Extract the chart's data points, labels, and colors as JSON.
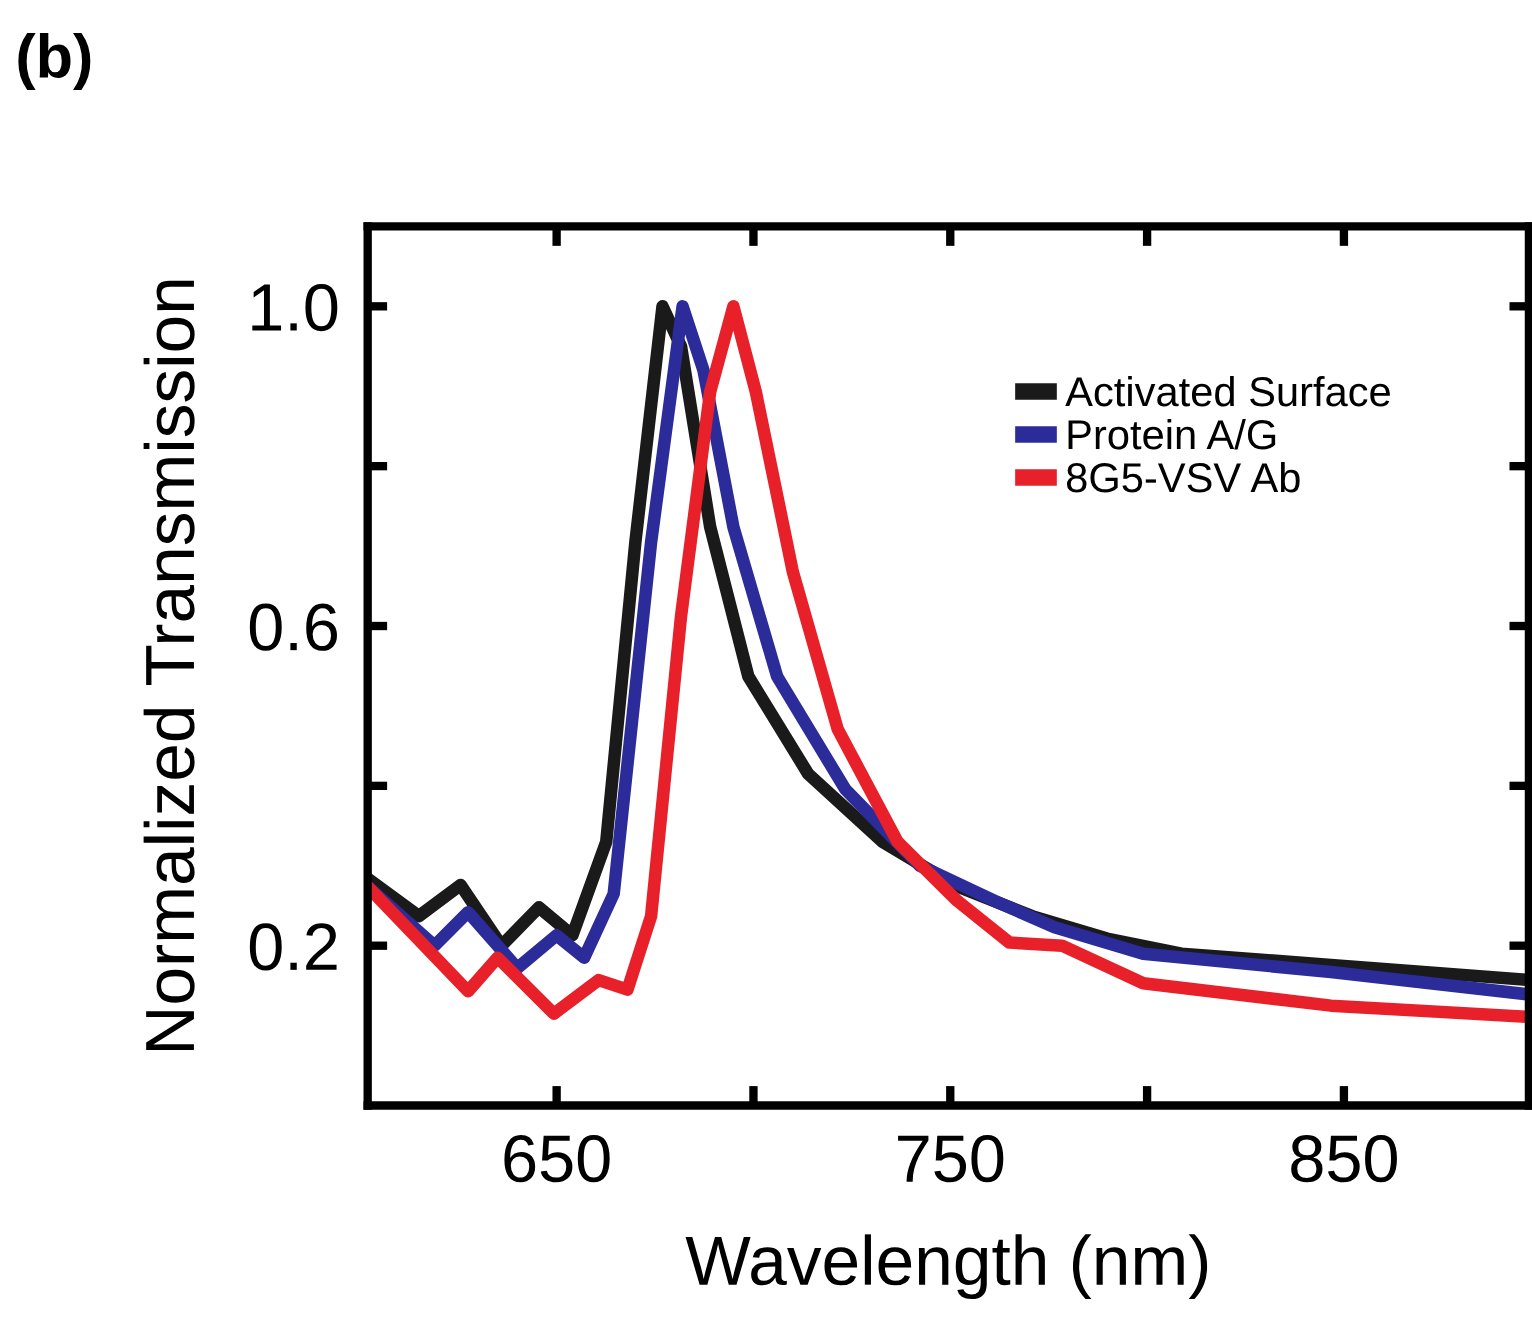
{
  "chart_data": {
    "type": "line",
    "title": "(b)",
    "xlabel": "Wavelength (nm)",
    "ylabel": "Normalized Transmission",
    "xlim": [
      602,
      897
    ],
    "ylim": [
      0,
      1.1
    ],
    "xticks": [
      650,
      {
        "value": 700,
        "label": null
      },
      750,
      {
        "value": 800,
        "label": null
      },
      850
    ],
    "yticks": [
      {
        "value": 0.2,
        "label": "0.2"
      },
      {
        "value": 0.4,
        "label": null
      },
      {
        "value": 0.6,
        "label": "0.6"
      },
      {
        "value": 0.8,
        "label": null
      },
      {
        "value": 1.0,
        "label": "1.0"
      }
    ],
    "grid": false,
    "legend": "top right",
    "marker": "none",
    "line_style": "solid",
    "series": [
      {
        "name": "Activated Surface",
        "color": "#1a1a1a",
        "x": [
          602,
          615,
          625.6,
          636,
          645.5,
          654,
          662.6,
          670,
          676.9,
          681.6,
          689,
          698.7,
          713.9,
          732.8,
          751.8,
          770.8,
          789.8,
          808.7,
          846.7,
          897
        ],
        "values": [
          0.284,
          0.237,
          0.276,
          0.2,
          0.248,
          0.213,
          0.33,
          0.705,
          1.0,
          0.95,
          0.724,
          0.537,
          0.415,
          0.33,
          0.274,
          0.237,
          0.209,
          0.19,
          0.176,
          0.157
        ]
      },
      {
        "name": "Protein A/G",
        "color": "#2b2b9a",
        "x": [
          602,
          619,
          627.5,
          640,
          650,
          657,
          664.5,
          674,
          682,
          687.3,
          694.9,
          706,
          723.3,
          742.3,
          761.3,
          776.5,
          799,
          846.7,
          897
        ],
        "values": [
          0.274,
          0.2,
          0.242,
          0.172,
          0.213,
          0.185,
          0.265,
          0.705,
          1.0,
          0.92,
          0.724,
          0.537,
          0.396,
          0.3,
          0.256,
          0.223,
          0.19,
          0.167,
          0.139
        ]
      },
      {
        "name": "8G5-VSV Ab",
        "color": "#e8202a",
        "x": [
          602,
          627.5,
          635,
          649.3,
          660.7,
          668,
          674,
          681.6,
          689,
          694.9,
          700.6,
          710,
          721.4,
          736.6,
          751.8,
          765,
          778.4,
          799,
          846.7,
          897
        ],
        "values": [
          0.274,
          0.143,
          0.185,
          0.115,
          0.157,
          0.145,
          0.237,
          0.612,
          0.893,
          1.0,
          0.893,
          0.668,
          0.471,
          0.33,
          0.256,
          0.204,
          0.2,
          0.153,
          0.125,
          0.111
        ]
      }
    ]
  }
}
